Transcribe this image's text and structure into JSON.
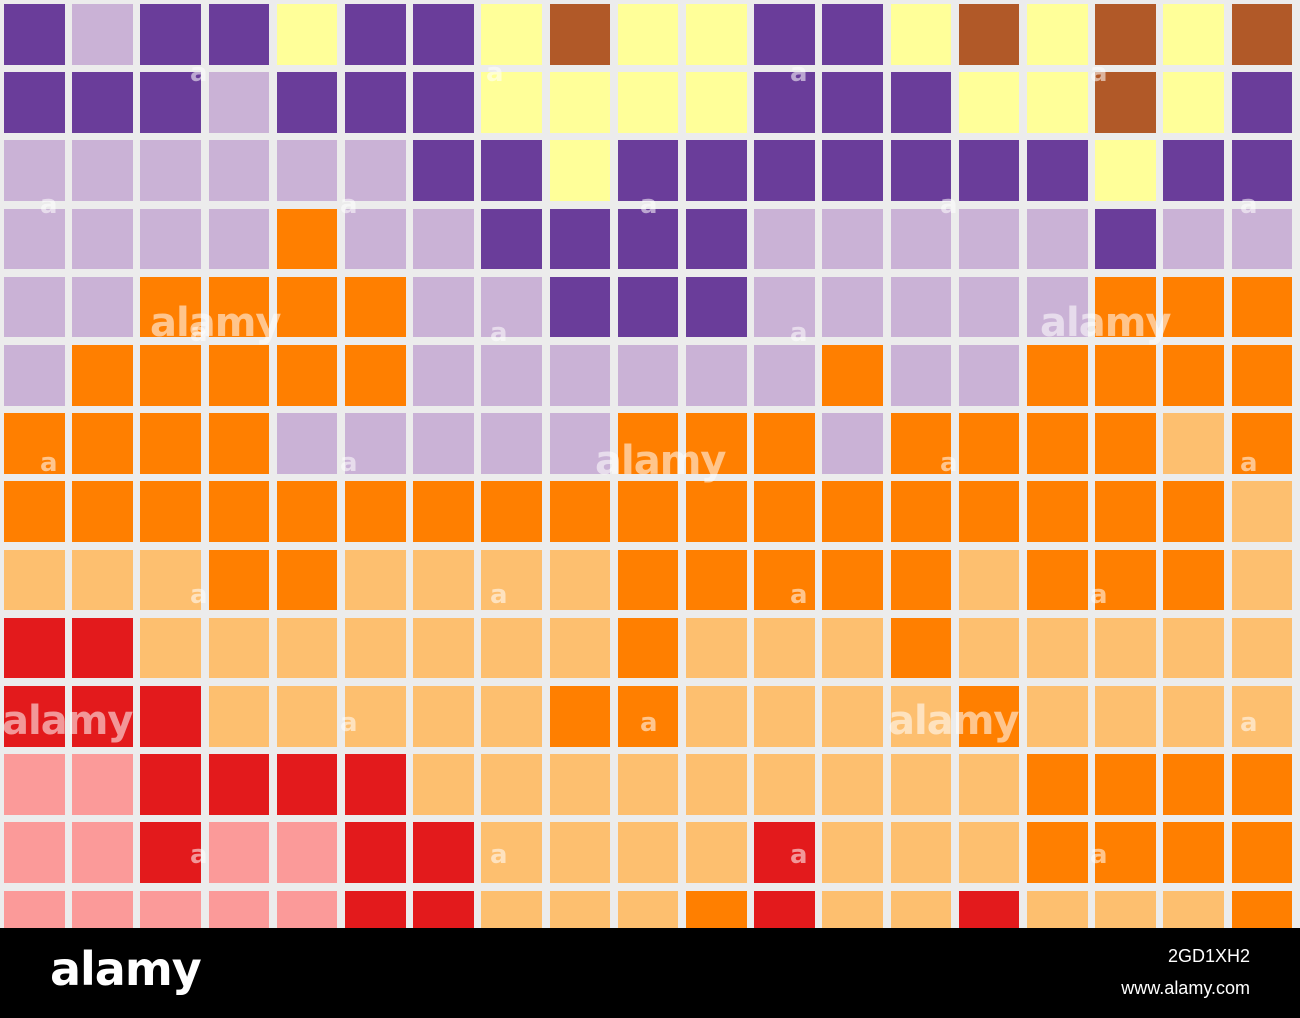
{
  "colors": {
    "P": "#6a3d9a",
    "L": "#cab2d6",
    "Y": "#ffff99",
    "B": "#b15928",
    "O": "#ff7f00",
    "S": "#fdbf6f",
    "R": "#e31a1c",
    "K": "#fb9a99",
    "background": "#ececec"
  },
  "grid": [
    "PLPPYPPYBYYPPYBYBYB",
    "PPPLPPPYYYYPPPYYBYP",
    "LLLLLLPPYPPPPPPPYPP",
    "LLLLOLLPPPPLLLLLPLL",
    "LLOOOOLLPPPLLLLLOOO",
    "LOOOOOLLLLLLOLLOOOO",
    "OOOOLLLLLOOOLOOOOSO",
    "OOOOOOOOOOOOOOOOOOS",
    "SSSOOSSSSOOOOOSOOOS",
    "RRSSSSSSSOSSSOSSSSS",
    "RRRSSSSSOOSSSSOSSSS",
    "KKRRRRSSSSSSSSSOOOO",
    "KKRKKRRSSSSRSSSOOOO",
    "KKKKKRRSSSORSSRSSSO"
  ],
  "watermark": {
    "text": "alamy",
    "small": "a"
  },
  "footer": {
    "logo": "alamy",
    "image_id": "2GD1XH2",
    "url": "www.alamy.com"
  }
}
